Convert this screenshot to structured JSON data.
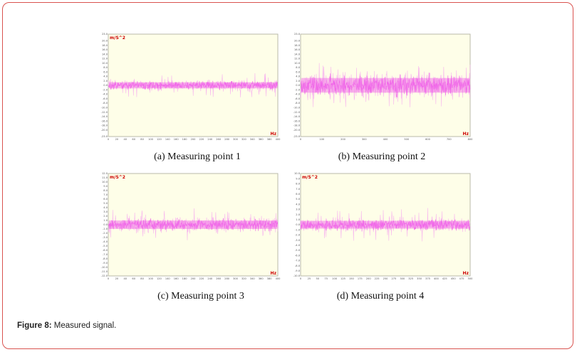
{
  "figure": {
    "label": "Figure 8:",
    "text": " Measured signal."
  },
  "colors": {
    "signal": "#f062e8",
    "signal_light": "#f6a6f0",
    "plot_background": "#fefee8",
    "unit_text": "#cc0000",
    "frame_border": "#d9534f"
  },
  "chart_data": [
    {
      "type": "line",
      "caption": "(a) Measuring point 1",
      "y_unit_label": "m/S^2",
      "x_unit_label": "Hz",
      "ylim": [
        -23,
        23
      ],
      "xlim": [
        0,
        400
      ],
      "y_ticks": [
        23.0,
        20.0,
        18.0,
        16.0,
        14.0,
        12.0,
        10.0,
        8.0,
        6.0,
        4.0,
        2.0,
        0.0,
        -2.0,
        -4.0,
        -6.0,
        -8.0,
        -10.0,
        -12.0,
        -14.0,
        -16.0,
        -18.0,
        -20.0,
        -23.0
      ],
      "x_ticks": [
        0,
        20,
        40,
        60,
        80,
        100,
        120,
        140,
        160,
        180,
        200,
        220,
        240,
        260,
        280,
        300,
        320,
        340,
        360,
        380,
        400
      ],
      "band_half_width": 2.5,
      "spike_max": 5.5,
      "seed": 11
    },
    {
      "type": "line",
      "caption": "(b) Measuring point 2",
      "y_unit_label": "",
      "x_unit_label": "Hz",
      "ylim": [
        -23,
        23
      ],
      "xlim": [
        0,
        800
      ],
      "y_ticks": [
        23.0,
        20.0,
        18.0,
        16.0,
        14.0,
        12.0,
        10.0,
        8.0,
        6.0,
        4.0,
        2.0,
        0.0,
        -2.0,
        -4.0,
        -6.0,
        -8.0,
        -10.0,
        -12.0,
        -14.0,
        -16.0,
        -18.0,
        -20.0,
        -23.0
      ],
      "x_ticks": [
        0,
        100,
        200,
        300,
        400,
        500,
        600,
        700,
        800
      ],
      "band_half_width": 6.0,
      "spike_max": 10.5,
      "seed": 27
    },
    {
      "type": "line",
      "caption": "(c) Measuring point 3",
      "y_unit_label": "m/S^2",
      "x_unit_label": "Hz",
      "ylim": [
        -12,
        12
      ],
      "xlim": [
        0,
        400
      ],
      "y_ticks": [
        12.0,
        11.0,
        10.0,
        9.0,
        8.0,
        7.0,
        6.0,
        5.0,
        4.0,
        3.0,
        2.0,
        1.0,
        0.0,
        -1.0,
        -2.0,
        -3.0,
        -4.0,
        -5.0,
        -6.0,
        -7.0,
        -8.0,
        -9.0,
        -10.0,
        -11.0,
        -12.0
      ],
      "x_ticks": [
        0,
        20,
        40,
        60,
        80,
        100,
        120,
        140,
        160,
        180,
        200,
        220,
        240,
        260,
        280,
        300,
        320,
        340,
        360,
        380,
        400
      ],
      "band_half_width": 1.8,
      "spike_max": 4.0,
      "seed": 43
    },
    {
      "type": "line",
      "caption": "(d) Measuring point 4",
      "y_unit_label": "m/S^2",
      "x_unit_label": "Hz",
      "ylim": [
        -10,
        10
      ],
      "xlim": [
        0,
        500
      ],
      "y_ticks": [
        10.0,
        9.0,
        8.0,
        7.0,
        6.0,
        5.0,
        4.0,
        3.0,
        2.0,
        1.0,
        0.0,
        -1.0,
        -2.0,
        -3.0,
        -4.0,
        -5.0,
        -6.0,
        -7.0,
        -8.0,
        -9.0,
        -10.0
      ],
      "x_ticks": [
        0,
        25,
        50,
        75,
        100,
        125,
        150,
        175,
        200,
        225,
        250,
        275,
        300,
        325,
        350,
        375,
        400,
        425,
        450,
        475,
        500
      ],
      "band_half_width": 1.4,
      "spike_max": 3.3,
      "seed": 59
    }
  ]
}
